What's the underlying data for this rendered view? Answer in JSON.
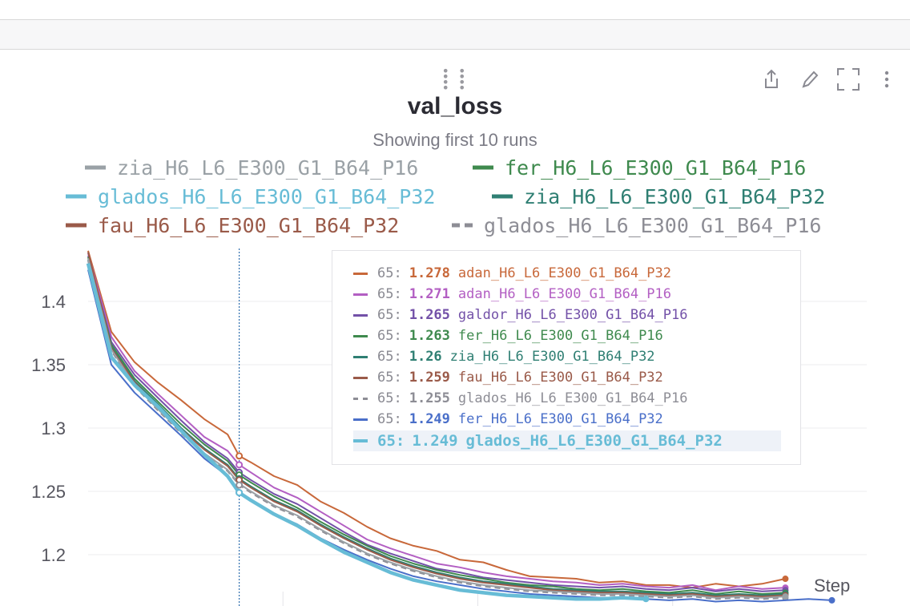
{
  "panel": {
    "title": "val_loss",
    "subtitle": "Showing first 10 runs",
    "drag_handle_icon": "drag-handle-icon",
    "toolbar": [
      {
        "name": "share-icon",
        "label": "share"
      },
      {
        "name": "edit-icon",
        "label": "edit"
      },
      {
        "name": "fullscreen-icon",
        "label": "fullscreen"
      },
      {
        "name": "more-options-icon",
        "label": "more"
      }
    ]
  },
  "legend": [
    {
      "name": "zia_H6_L6_E300_G1_B64_P16",
      "color": "#9aa1a6",
      "dashed": false
    },
    {
      "name": "fer_H6_L6_E300_G1_B64_P16",
      "color": "#3f8a4e",
      "dashed": false
    },
    {
      "name": "glados_H6_L6_E300_G1_B64_P32",
      "color": "#67bcd6",
      "dashed": false
    },
    {
      "name": "zia_H6_L6_E300_G1_B64_P32",
      "color": "#2f7f73",
      "dashed": false
    },
    {
      "name": "fau_H6_L6_E300_G1_B64_P32",
      "color": "#9a5a49",
      "dashed": false
    },
    {
      "name": "glados_H6_L6_E300_G1_B64_P16",
      "color": "#8d8d95",
      "dashed": true
    }
  ],
  "tooltip": {
    "step": "65:",
    "rows": [
      {
        "value": "1.278",
        "name": "adan_H6_L6_E300_G1_B64_P32",
        "color": "#c8683a",
        "dashed": false,
        "highlight": false
      },
      {
        "value": "1.271",
        "name": "adan_H6_L6_E300_G1_B64_P16",
        "color": "#b35fc3",
        "dashed": false,
        "highlight": false
      },
      {
        "value": "1.265",
        "name": "galdor_H6_L6_E300_G1_B64_P16",
        "color": "#7351a8",
        "dashed": false,
        "highlight": false
      },
      {
        "value": "1.263",
        "name": "fer_H6_L6_E300_G1_B64_P16",
        "color": "#3f8a4e",
        "dashed": false,
        "highlight": false
      },
      {
        "value": "1.26",
        "name": "zia_H6_L6_E300_G1_B64_P32",
        "color": "#2f7f73",
        "dashed": false,
        "highlight": false
      },
      {
        "value": "1.259",
        "name": "fau_H6_L6_E300_G1_B64_P32",
        "color": "#9a5a49",
        "dashed": false,
        "highlight": false
      },
      {
        "value": "1.255",
        "name": "glados_H6_L6_E300_G1_B64_P16",
        "color": "#8d8d95",
        "dashed": true,
        "highlight": false
      },
      {
        "value": "1.249",
        "name": "fer_H6_L6_E300_G1_B64_P32",
        "color": "#4a6fc9",
        "dashed": false,
        "highlight": false
      },
      {
        "value": "1.249",
        "name": "glados_H6_L6_E300_G1_B64_P32",
        "color": "#67bcd6",
        "dashed": false,
        "highlight": true
      }
    ]
  },
  "chart_data": {
    "type": "line",
    "title": "val_loss",
    "subtitle": "Showing first 10 runs",
    "xlabel": "Step",
    "ylabel": "",
    "yticks": [
      "1.4",
      "1.35",
      "1.3",
      "1.25",
      "1.2"
    ],
    "ylim": [
      1.16,
      1.46
    ],
    "xlim": [
      0,
      335
    ],
    "hover_step": 65,
    "grid": true,
    "legend_position": "top",
    "series": [
      {
        "name": "adan_H6_L6_E300_G1_B64_P32",
        "color": "#c8683a",
        "dashed": false,
        "width": 2,
        "x": [
          0,
          10,
          20,
          30,
          40,
          50,
          60,
          65,
          70,
          80,
          90,
          100,
          110,
          120,
          130,
          140,
          150,
          160,
          170,
          180,
          190,
          200,
          210,
          220,
          230,
          240,
          250,
          260,
          270,
          280,
          290,
          300
        ],
        "y": [
          1.44,
          1.376,
          1.352,
          1.336,
          1.322,
          1.307,
          1.295,
          1.278,
          1.273,
          1.262,
          1.255,
          1.242,
          1.233,
          1.222,
          1.213,
          1.207,
          1.203,
          1.196,
          1.194,
          1.188,
          1.183,
          1.182,
          1.181,
          1.178,
          1.179,
          1.176,
          1.176,
          1.174,
          1.177,
          1.175,
          1.177,
          1.181
        ]
      },
      {
        "name": "adan_H6_L6_E300_G1_B64_P16",
        "color": "#b35fc3",
        "dashed": false,
        "width": 2,
        "x": [
          0,
          10,
          20,
          30,
          40,
          50,
          60,
          65,
          70,
          80,
          90,
          100,
          110,
          120,
          130,
          140,
          150,
          160,
          170,
          180,
          190,
          200,
          210,
          220,
          230,
          240,
          250,
          260,
          270,
          280,
          290,
          300
        ],
        "y": [
          1.438,
          1.372,
          1.345,
          1.327,
          1.31,
          1.293,
          1.282,
          1.271,
          1.265,
          1.253,
          1.245,
          1.234,
          1.223,
          1.212,
          1.205,
          1.199,
          1.193,
          1.19,
          1.186,
          1.183,
          1.181,
          1.179,
          1.178,
          1.176,
          1.177,
          1.175,
          1.174,
          1.176,
          1.172,
          1.175,
          1.173,
          1.174
        ]
      },
      {
        "name": "galdor_H6_L6_E300_G1_B64_P16",
        "color": "#7351a8",
        "dashed": false,
        "width": 2,
        "x": [
          0,
          10,
          20,
          30,
          40,
          50,
          60,
          65,
          70,
          80,
          90,
          100,
          110,
          120,
          130,
          140,
          150,
          160,
          170,
          180,
          190,
          200,
          210,
          220,
          230,
          240,
          250,
          260,
          270,
          280,
          290,
          300
        ],
        "y": [
          1.436,
          1.368,
          1.342,
          1.324,
          1.306,
          1.289,
          1.276,
          1.265,
          1.259,
          1.248,
          1.24,
          1.229,
          1.218,
          1.208,
          1.201,
          1.195,
          1.189,
          1.186,
          1.182,
          1.18,
          1.178,
          1.176,
          1.175,
          1.174,
          1.175,
          1.173,
          1.172,
          1.174,
          1.171,
          1.173,
          1.171,
          1.172
        ]
      },
      {
        "name": "fer_H6_L6_E300_G1_B64_P16",
        "color": "#3f8a4e",
        "dashed": false,
        "width": 2,
        "x": [
          0,
          10,
          20,
          30,
          40,
          50,
          60,
          65,
          70,
          80,
          90,
          100,
          110,
          120,
          130,
          140,
          150,
          160,
          170,
          180,
          190,
          200,
          210,
          220,
          230,
          240,
          250,
          260,
          270,
          280,
          290,
          300
        ],
        "y": [
          1.435,
          1.366,
          1.339,
          1.321,
          1.303,
          1.287,
          1.274,
          1.263,
          1.257,
          1.246,
          1.237,
          1.226,
          1.216,
          1.207,
          1.199,
          1.193,
          1.188,
          1.184,
          1.181,
          1.178,
          1.176,
          1.175,
          1.173,
          1.172,
          1.173,
          1.171,
          1.17,
          1.172,
          1.169,
          1.171,
          1.169,
          1.17
        ]
      },
      {
        "name": "zia_H6_L6_E300_G1_B64_P32",
        "color": "#2f7f73",
        "dashed": false,
        "width": 2,
        "x": [
          0,
          10,
          20,
          30,
          40,
          50,
          60,
          65,
          70,
          80,
          90,
          100,
          110,
          120,
          130,
          140,
          150,
          160,
          170,
          180,
          190,
          200,
          210,
          220,
          230,
          240,
          250,
          260,
          270,
          280,
          290,
          300
        ],
        "y": [
          1.433,
          1.364,
          1.337,
          1.319,
          1.3,
          1.284,
          1.271,
          1.26,
          1.254,
          1.243,
          1.235,
          1.224,
          1.214,
          1.205,
          1.197,
          1.191,
          1.186,
          1.182,
          1.179,
          1.177,
          1.175,
          1.173,
          1.172,
          1.171,
          1.171,
          1.17,
          1.169,
          1.17,
          1.168,
          1.169,
          1.168,
          1.169
        ]
      },
      {
        "name": "fau_H6_L6_E300_G1_B64_P32",
        "color": "#9a5a49",
        "dashed": false,
        "width": 2,
        "x": [
          0,
          10,
          20,
          30,
          40,
          50,
          60,
          65,
          70,
          80,
          90,
          100,
          110,
          120,
          130,
          140,
          150,
          160,
          170,
          180,
          190,
          200,
          210,
          220,
          230,
          240,
          250,
          260,
          270,
          280,
          290,
          300
        ],
        "y": [
          1.439,
          1.363,
          1.336,
          1.317,
          1.299,
          1.283,
          1.27,
          1.259,
          1.253,
          1.242,
          1.234,
          1.223,
          1.213,
          1.204,
          1.196,
          1.19,
          1.185,
          1.181,
          1.178,
          1.176,
          1.174,
          1.172,
          1.171,
          1.17,
          1.17,
          1.169,
          1.168,
          1.169,
          1.167,
          1.168,
          1.167,
          1.168
        ]
      },
      {
        "name": "glados_H6_L6_E300_G1_B64_P16",
        "color": "#8d8d95",
        "dashed": true,
        "width": 2,
        "x": [
          0,
          10,
          20,
          30,
          40,
          50,
          60,
          65,
          70,
          80,
          90,
          100,
          110,
          120,
          130,
          140,
          150,
          160,
          170,
          180,
          190,
          200,
          210,
          220,
          230,
          240,
          250,
          260,
          270,
          280,
          290,
          300
        ],
        "y": [
          1.432,
          1.361,
          1.333,
          1.314,
          1.296,
          1.279,
          1.266,
          1.255,
          1.249,
          1.238,
          1.23,
          1.219,
          1.209,
          1.2,
          1.193,
          1.187,
          1.182,
          1.178,
          1.175,
          1.173,
          1.171,
          1.17,
          1.169,
          1.168,
          1.168,
          1.167,
          1.166,
          1.167,
          1.165,
          1.166,
          1.165,
          1.166
        ]
      },
      {
        "name": "zia_H6_L6_E300_G1_B64_P16",
        "color": "#9aa1a6",
        "dashed": false,
        "width": 2,
        "x": [
          0,
          10,
          20,
          30,
          40,
          50,
          60,
          65,
          70,
          80,
          90,
          100,
          110,
          120,
          130,
          140,
          150,
          160,
          170,
          180,
          190,
          200,
          210,
          220,
          230,
          240,
          250,
          260,
          270,
          280,
          290,
          300
        ],
        "y": [
          1.434,
          1.362,
          1.334,
          1.315,
          1.297,
          1.28,
          1.267,
          1.256,
          1.25,
          1.239,
          1.231,
          1.22,
          1.21,
          1.201,
          1.194,
          1.188,
          1.183,
          1.179,
          1.176,
          1.174,
          1.172,
          1.171,
          1.17,
          1.169,
          1.169,
          1.168,
          1.167,
          1.168,
          1.166,
          1.167,
          1.166,
          1.167
        ]
      },
      {
        "name": "fer_H6_L6_E300_G1_B64_P32",
        "color": "#4a6fc9",
        "dashed": false,
        "width": 2,
        "x": [
          0,
          10,
          20,
          30,
          40,
          50,
          60,
          65,
          70,
          80,
          90,
          100,
          110,
          120,
          130,
          140,
          150,
          160,
          170,
          180,
          190,
          200,
          210,
          220,
          230,
          240,
          250,
          260,
          270,
          280,
          290,
          300,
          310,
          320
        ],
        "y": [
          1.425,
          1.35,
          1.328,
          1.311,
          1.294,
          1.276,
          1.262,
          1.249,
          1.243,
          1.232,
          1.224,
          1.213,
          1.204,
          1.196,
          1.189,
          1.183,
          1.179,
          1.176,
          1.173,
          1.171,
          1.169,
          1.168,
          1.167,
          1.166,
          1.166,
          1.165,
          1.164,
          1.165,
          1.163,
          1.164,
          1.163,
          1.164,
          1.165,
          1.164
        ]
      },
      {
        "name": "glados_H6_L6_E300_G1_B64_P32",
        "color": "#67bcd6",
        "dashed": false,
        "width": 4.5,
        "x": [
          0,
          10,
          20,
          30,
          40,
          50,
          60,
          65,
          70,
          80,
          90,
          100,
          110,
          120,
          130,
          140,
          150,
          160,
          170,
          180,
          190,
          200,
          210,
          220,
          230,
          240
        ],
        "y": [
          1.43,
          1.356,
          1.334,
          1.317,
          1.298,
          1.279,
          1.262,
          1.249,
          1.243,
          1.232,
          1.223,
          1.212,
          1.202,
          1.194,
          1.186,
          1.18,
          1.176,
          1.172,
          1.17,
          1.168,
          1.167,
          1.166,
          1.165,
          1.165,
          1.166,
          1.165
        ]
      }
    ]
  }
}
